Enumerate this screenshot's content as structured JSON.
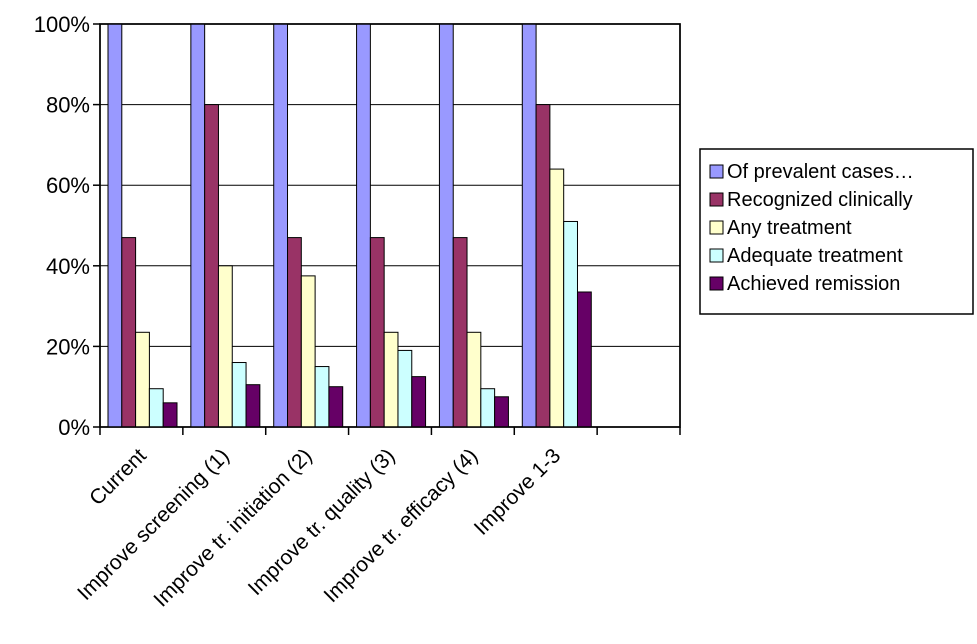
{
  "chart_data": {
    "type": "bar",
    "title": "",
    "xlabel": "",
    "ylabel": "",
    "ylim": [
      0,
      100
    ],
    "yticks": [
      "0%",
      "20%",
      "40%",
      "60%",
      "80%",
      "100%"
    ],
    "ytick_values": [
      0,
      20,
      40,
      60,
      80,
      100
    ],
    "grid": true,
    "legend_position": "right",
    "categories": [
      "Current",
      "Improve screening (1)",
      "Improve tr. initiation (2)",
      "Improve tr. quality (3)",
      "Improve tr. efficacy (4)",
      "Improve 1-3",
      ""
    ],
    "series": [
      {
        "name": "Of prevalent cases…",
        "color": "#9999ff",
        "values": [
          100,
          100,
          100,
          100,
          100,
          100,
          null
        ]
      },
      {
        "name": "Recognized clinically",
        "color": "#993366",
        "values": [
          47,
          80,
          47,
          47,
          47,
          80,
          null
        ]
      },
      {
        "name": "Any treatment",
        "color": "#ffffcc",
        "values": [
          23.5,
          40,
          37.5,
          23.5,
          23.5,
          64,
          null
        ]
      },
      {
        "name": "Adequate treatment",
        "color": "#ccffff",
        "values": [
          9.5,
          16,
          15,
          19,
          9.5,
          51,
          null
        ]
      },
      {
        "name": "Achieved remission",
        "color": "#660066",
        "values": [
          6,
          10.5,
          10,
          12.5,
          7.5,
          33.5,
          null
        ]
      }
    ]
  }
}
